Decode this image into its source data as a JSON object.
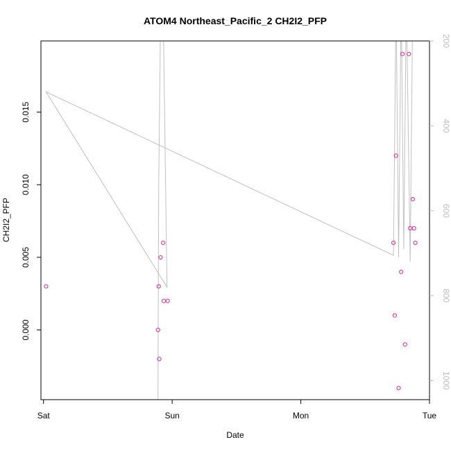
{
  "chart_data": {
    "type": "scatter",
    "title": "ATOM4 Northeast_Pacific_2 CH2I2_PFP",
    "xlabel": "Date",
    "ylabel": "CH2I2_PFP",
    "x_ticks": [
      "Sat",
      "Sun",
      "Mon",
      "Tue"
    ],
    "xlim": [
      -0.02,
      3.0
    ],
    "ylim": [
      -0.0048,
      0.0199
    ],
    "y_ticks": [
      0.0,
      0.005,
      0.01,
      0.015
    ],
    "y_tick_labels": [
      "0.000",
      "0.005",
      "0.010",
      "0.015"
    ],
    "y2lim": [
      1045,
      200
    ],
    "y2_ticks": [
      200,
      400,
      600,
      800,
      1000
    ],
    "y2_tick_labels": [
      "200",
      "400",
      "600",
      "800",
      "1000"
    ],
    "grid": false,
    "series": [
      {
        "type": "scatter",
        "axis": "left",
        "color": "#e0249a",
        "points": [
          {
            "x": 0.02,
            "y": 0.003
          },
          {
            "x": 0.89,
            "y": 0.0
          },
          {
            "x": 0.895,
            "y": 0.003
          },
          {
            "x": 0.9,
            "y": -0.002
          },
          {
            "x": 0.91,
            "y": 0.005
          },
          {
            "x": 0.93,
            "y": 0.006
          },
          {
            "x": 0.935,
            "y": 0.002
          },
          {
            "x": 0.965,
            "y": 0.002
          },
          {
            "x": 2.72,
            "y": 0.006
          },
          {
            "x": 2.73,
            "y": 0.001
          },
          {
            "x": 2.74,
            "y": 0.012
          },
          {
            "x": 2.76,
            "y": -0.004
          },
          {
            "x": 2.78,
            "y": 0.004
          },
          {
            "x": 2.79,
            "y": 0.019
          },
          {
            "x": 2.81,
            "y": -0.001
          },
          {
            "x": 2.84,
            "y": 0.019
          },
          {
            "x": 2.85,
            "y": 0.007
          },
          {
            "x": 2.87,
            "y": 0.009
          },
          {
            "x": 2.88,
            "y": 0.007
          },
          {
            "x": 2.89,
            "y": 0.006
          }
        ]
      },
      {
        "type": "line",
        "axis": "right",
        "color": "#c0c0c0",
        "points": [
          {
            "x": 0.02,
            "y": 1045
          },
          {
            "x": 0.89,
            "y": 1045
          },
          {
            "x": 0.895,
            "y": 550
          },
          {
            "x": 0.91,
            "y": 130
          },
          {
            "x": 0.93,
            "y": 130
          },
          {
            "x": 0.96,
            "y": 780
          },
          {
            "x": 0.02,
            "y": 320
          },
          {
            "x": 2.72,
            "y": 705
          },
          {
            "x": 2.74,
            "y": 100
          },
          {
            "x": 2.76,
            "y": 710
          },
          {
            "x": 2.78,
            "y": 100
          },
          {
            "x": 2.8,
            "y": 690
          },
          {
            "x": 2.82,
            "y": 100
          },
          {
            "x": 2.85,
            "y": 720
          },
          {
            "x": 2.87,
            "y": 100
          }
        ]
      }
    ]
  }
}
